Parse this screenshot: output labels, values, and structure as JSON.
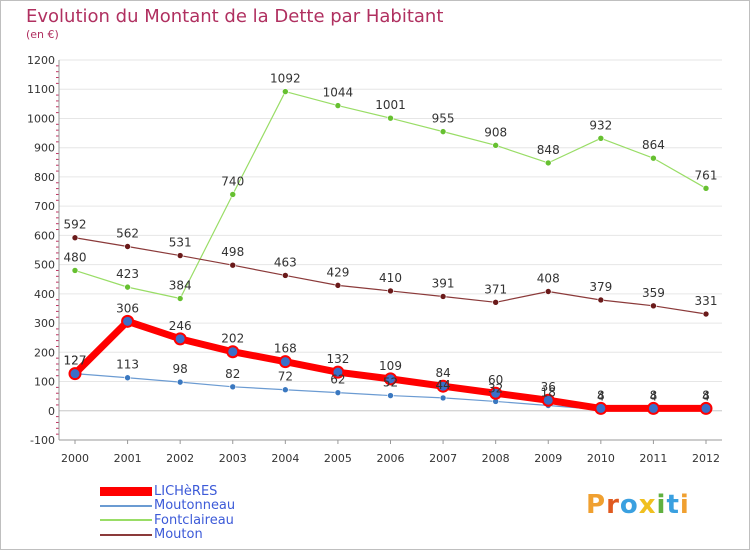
{
  "title": "Evolution du Montant de la Dette par Habitant",
  "subtitle": "(en €)",
  "logo": {
    "text": "Proxiti",
    "letters": [
      "P",
      "r",
      "o",
      "x",
      "i",
      "t",
      "i"
    ],
    "colors": [
      "#f0a030",
      "#e05a20",
      "#3aa0e0",
      "#f0c020",
      "#60b040",
      "#3aa0e0",
      "#f0a030"
    ]
  },
  "chart_data": {
    "type": "line",
    "title": "Evolution du Montant de la Dette par Habitant",
    "ylabel": "(en €)",
    "x": [
      "2000",
      "2001",
      "2002",
      "2003",
      "2004",
      "2005",
      "2006",
      "2007",
      "2008",
      "2009",
      "2010",
      "2011",
      "2012"
    ],
    "ylim": [
      -100,
      1200
    ],
    "yticks": [
      -100,
      0,
      100,
      200,
      300,
      400,
      500,
      600,
      700,
      800,
      900,
      1000,
      1100,
      1200
    ],
    "grid": true,
    "legend_position": "bottom-left",
    "series": [
      {
        "name": "LICHèRES",
        "color": "#ff0000",
        "marker": "#3a6fc8",
        "width": 7,
        "values": [
          127,
          306,
          246,
          202,
          168,
          132,
          109,
          84,
          60,
          36,
          8,
          8,
          8
        ]
      },
      {
        "name": "Moutonneau",
        "color": "#6b9bd2",
        "marker": "#3a78c0",
        "width": 1.2,
        "values": [
          127,
          113,
          98,
          82,
          72,
          62,
          52,
          44,
          32,
          18,
          4,
          4,
          4
        ]
      },
      {
        "name": "Fontclaireau",
        "color": "#99dd66",
        "marker": "#66c030",
        "width": 1.2,
        "values": [
          480,
          423,
          384,
          740,
          1092,
          1044,
          1001,
          955,
          908,
          848,
          932,
          864,
          761
        ]
      },
      {
        "name": "Mouton",
        "color": "#8b3a3a",
        "marker": "#6a1a1a",
        "width": 1.2,
        "values": [
          592,
          562,
          531,
          498,
          463,
          429,
          410,
          391,
          371,
          408,
          379,
          359,
          331
        ]
      }
    ]
  }
}
